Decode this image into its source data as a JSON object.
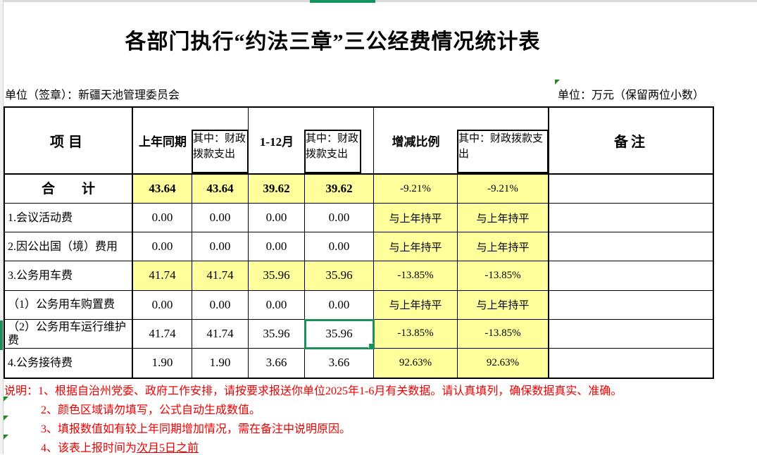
{
  "page": {
    "title": "各部门执行“约法三章”三公经费情况统计表",
    "unit_left": "单位（签章）：新疆天池管理委员会",
    "unit_right": "单位：万元（保留两位小数）"
  },
  "icons": {
    "cell_flag": "green-corner-triangle"
  },
  "colors": {
    "highlight_yellow": "#ffff9c",
    "note_red": "#ee0000",
    "selection_green": "#1e8f5a",
    "top_bar_green": "#13935b",
    "flag_green": "#1f8a1f"
  },
  "table": {
    "headers": {
      "item": "项目",
      "prev": "上年同期",
      "sub": "其中：财政拨款支出",
      "months": "1-12月",
      "ratio": "增减比例",
      "remark": "备注"
    },
    "selection": {
      "row": 5,
      "col": 3
    },
    "rows": [
      {
        "label": "合　　计",
        "bold": true,
        "values_yellow": true,
        "values": [
          "43.64",
          "43.64",
          "39.62",
          "39.62"
        ],
        "ratios": [
          "-9.21%",
          "-9.21%"
        ],
        "remark": ""
      },
      {
        "label": "1.会议活动费",
        "bold": false,
        "values_yellow": false,
        "values": [
          "0.00",
          "0.00",
          "0.00",
          "0.00"
        ],
        "ratios": [
          "与上年持平",
          "与上年持平"
        ],
        "remark": ""
      },
      {
        "label": "2.因公出国（境）费用",
        "bold": false,
        "values_yellow": false,
        "values": [
          "0.00",
          "0.00",
          "0.00",
          "0.00"
        ],
        "ratios": [
          "与上年持平",
          "与上年持平"
        ],
        "remark": ""
      },
      {
        "label": "3.公务用车费",
        "bold": false,
        "values_yellow": true,
        "values": [
          "41.74",
          "41.74",
          "35.96",
          "35.96"
        ],
        "ratios": [
          "-13.85%",
          "-13.85%"
        ],
        "remark": ""
      },
      {
        "label": "（1）公务用车购置费",
        "bold": false,
        "values_yellow": false,
        "values": [
          "0.00",
          "0.00",
          "0.00",
          "0.00"
        ],
        "ratios": [
          "与上年持平",
          "与上年持平"
        ],
        "remark": ""
      },
      {
        "label": "（2）公务用车运行维护费",
        "bold": false,
        "values_yellow": false,
        "values": [
          "41.74",
          "41.74",
          "35.96",
          "35.96"
        ],
        "ratios": [
          "-13.85%",
          "-13.85%"
        ],
        "remark": ""
      },
      {
        "label": "4.公务接待费",
        "bold": false,
        "values_yellow": false,
        "values": [
          "1.90",
          "1.90",
          "3.66",
          "3.66"
        ],
        "ratios": [
          "92.63%",
          "92.63%"
        ],
        "remark": ""
      }
    ]
  },
  "notes": [
    {
      "text": "说明：1、根据自治州党委、政府工作安排，请按要求报送你单位2025年1-6月有关数据。请认真填列，确保数据真实、准确。"
    },
    {
      "text": "2、颜色区域请勿填写，公式自动生成数值。"
    },
    {
      "text": "3、填报数值如有较上年同期增加情况，需在备注中说明原因。"
    },
    {
      "text": "4、该表上报时间为",
      "underlined": "次月5日之前"
    }
  ]
}
